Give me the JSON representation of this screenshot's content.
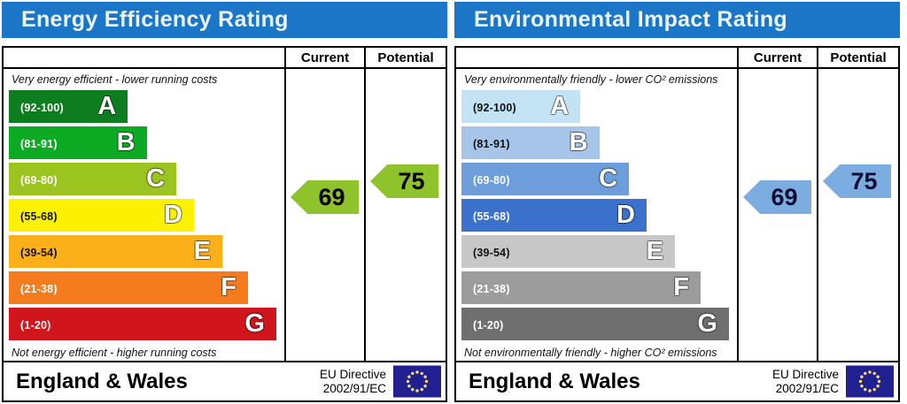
{
  "panels": [
    {
      "title": "Energy Efficiency Rating",
      "columns": {
        "current": "Current",
        "potential": "Potential"
      },
      "top_caption": "Very energy efficient - lower running costs",
      "bottom_caption": "Not energy efficient - higher running costs",
      "bands": [
        {
          "letter": "A",
          "range": "(92-100)",
          "color": "#0e7d20",
          "range_color": "#ffffff",
          "width_pct": 44
        },
        {
          "letter": "B",
          "range": "(81-91)",
          "color": "#0caa23",
          "range_color": "#ffffff",
          "width_pct": 51
        },
        {
          "letter": "C",
          "range": "(69-80)",
          "color": "#9bc421",
          "range_color": "#ffffff",
          "width_pct": 62
        },
        {
          "letter": "D",
          "range": "(55-68)",
          "color": "#fcf200",
          "range_color": "#111111",
          "width_pct": 68.5
        },
        {
          "letter": "E",
          "range": "(39-54)",
          "color": "#fbaf19",
          "range_color": "#111111",
          "width_pct": 79
        },
        {
          "letter": "F",
          "range": "(21-38)",
          "color": "#f57c1e",
          "range_color": "#ffffff",
          "width_pct": 88.5
        },
        {
          "letter": "G",
          "range": "(1-20)",
          "color": "#d0161c",
          "range_color": "#ffffff",
          "width_pct": 99
        }
      ],
      "current": {
        "value": "69",
        "arrow_color": "#8fc32c",
        "text_color": "#000000"
      },
      "potential": {
        "value": "75",
        "arrow_color": "#8fc32c",
        "text_color": "#000000"
      },
      "footer": {
        "region": "England & Wales",
        "directive_line1": "EU Directive",
        "directive_line2": "2002/91/EC"
      }
    },
    {
      "title": "Environmental Impact Rating",
      "columns": {
        "current": "Current",
        "potential": "Potential"
      },
      "top_caption": "Very environmentally friendly - lower CO² emissions",
      "bottom_caption": "Not environmentally friendly - higher CO² emissions",
      "bands": [
        {
          "letter": "A",
          "range": "(92-100)",
          "color": "#c3e2f4",
          "range_color": "#111111",
          "width_pct": 44
        },
        {
          "letter": "B",
          "range": "(81-91)",
          "color": "#a7c5e9",
          "range_color": "#111111",
          "width_pct": 51
        },
        {
          "letter": "C",
          "range": "(69-80)",
          "color": "#6d9dda",
          "range_color": "#ffffff",
          "width_pct": 62
        },
        {
          "letter": "D",
          "range": "(55-68)",
          "color": "#3b70cd",
          "range_color": "#ffffff",
          "width_pct": 68.5
        },
        {
          "letter": "E",
          "range": "(39-54)",
          "color": "#c7c7c7",
          "range_color": "#111111",
          "width_pct": 79
        },
        {
          "letter": "F",
          "range": "(21-38)",
          "color": "#9c9c9c",
          "range_color": "#ffffff",
          "width_pct": 88.5
        },
        {
          "letter": "G",
          "range": "(1-20)",
          "color": "#6f6f6f",
          "range_color": "#ffffff",
          "width_pct": 99
        }
      ],
      "current": {
        "value": "69",
        "arrow_color": "#7cade0",
        "text_color": "#0d0d33"
      },
      "potential": {
        "value": "75",
        "arrow_color": "#7cade0",
        "text_color": "#0d0d33"
      },
      "footer": {
        "region": "England & Wales",
        "directive_line1": "EU Directive",
        "directive_line2": "2002/91/EC"
      }
    }
  ],
  "colors": {
    "header_blue": "#1b76c8",
    "eu_flag_blue": "#202090",
    "eu_flag_stars": "#ffe066",
    "border": "#000000"
  },
  "chart_data": [
    {
      "type": "bar",
      "title": "Energy Efficiency Rating",
      "categories": [
        "A",
        "B",
        "C",
        "D",
        "E",
        "F",
        "G"
      ],
      "band_score_ranges": [
        "92-100",
        "81-91",
        "69-80",
        "55-68",
        "39-54",
        "21-38",
        "1-20"
      ],
      "band_relative_widths_pct": [
        44,
        51,
        62,
        68.5,
        79,
        88.5,
        99
      ],
      "band_colors": [
        "#0e7d20",
        "#0caa23",
        "#9bc421",
        "#fcf200",
        "#fbaf19",
        "#f57c1e",
        "#d0161c"
      ],
      "current_rating": 69,
      "potential_rating": 75,
      "current_band": "C",
      "potential_band": "C",
      "top_note": "Very energy efficient - lower running costs",
      "bottom_note": "Not energy efficient - higher running costs",
      "region": "England & Wales",
      "directive": "EU Directive 2002/91/EC"
    },
    {
      "type": "bar",
      "title": "Environmental Impact Rating",
      "categories": [
        "A",
        "B",
        "C",
        "D",
        "E",
        "F",
        "G"
      ],
      "band_score_ranges": [
        "92-100",
        "81-91",
        "69-80",
        "55-68",
        "39-54",
        "21-38",
        "1-20"
      ],
      "band_relative_widths_pct": [
        44,
        51,
        62,
        68.5,
        79,
        88.5,
        99
      ],
      "band_colors": [
        "#c3e2f4",
        "#a7c5e9",
        "#6d9dda",
        "#3b70cd",
        "#c7c7c7",
        "#9c9c9c",
        "#6f6f6f"
      ],
      "current_rating": 69,
      "potential_rating": 75,
      "current_band": "C",
      "potential_band": "C",
      "top_note": "Very environmentally friendly - lower CO² emissions",
      "bottom_note": "Not environmentally friendly - higher CO² emissions",
      "region": "England & Wales",
      "directive": "EU Directive 2002/91/EC"
    }
  ]
}
